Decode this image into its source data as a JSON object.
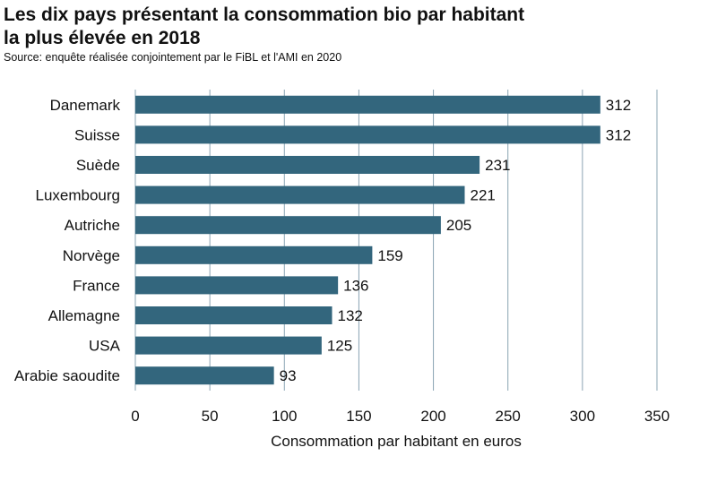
{
  "header": {
    "title_line1": "Les dix pays présentant la consommation bio par habitant",
    "title_line2": "la plus élevée en 2018",
    "source": "Source: enquête réalisée conjointement par le FiBL et l'AMI en 2020"
  },
  "chart_data": {
    "type": "bar",
    "orientation": "horizontal",
    "categories": [
      "Danemark",
      "Suisse",
      "Suède",
      "Luxembourg",
      "Autriche",
      "Norvège",
      "France",
      "Allemagne",
      "USA",
      "Arabie saoudite"
    ],
    "values": [
      312,
      312,
      231,
      221,
      205,
      159,
      136,
      132,
      125,
      93
    ],
    "data_labels": [
      "312",
      "312",
      "231",
      "221",
      "205",
      "159",
      "136",
      "132",
      "125",
      "93"
    ],
    "xlabel": "Consommation par habitant en euros",
    "xlim": [
      0,
      350
    ],
    "xticks": [
      0,
      50,
      100,
      150,
      200,
      250,
      300,
      350
    ],
    "xtick_labels": [
      "0",
      "50",
      "100",
      "150",
      "200",
      "250",
      "300",
      "350"
    ],
    "grid": "vertical",
    "bar_color": "#33667d",
    "grid_color": "#8aa4b3"
  }
}
